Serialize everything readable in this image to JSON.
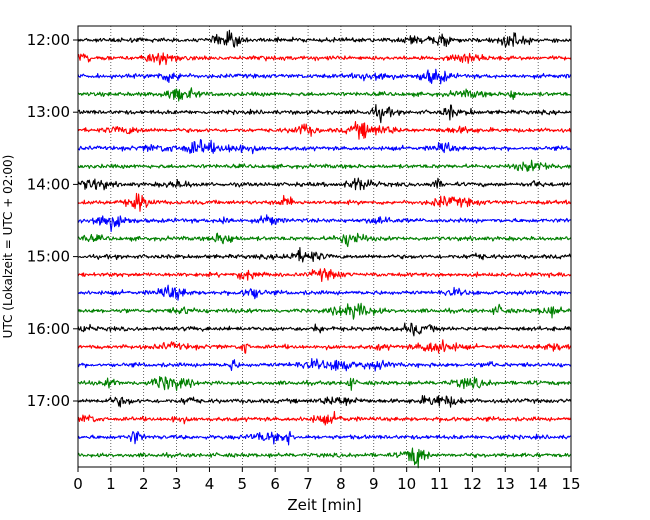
{
  "chart_data": {
    "type": "line",
    "title": "",
    "xlabel": "Zeit  [min]",
    "ylabel": "UTC (Lokalzeit = UTC + 02:00)",
    "xlim": [
      0,
      15
    ],
    "x_ticks": [
      0,
      1,
      2,
      3,
      4,
      5,
      6,
      7,
      8,
      9,
      10,
      11,
      12,
      13,
      14,
      15
    ],
    "y_tick_labels": [
      "12:00",
      "13:00",
      "14:00",
      "15:00",
      "16:00",
      "17:00"
    ],
    "trace_interval_minutes": 15,
    "grid": "vertical dotted at each minute",
    "color_cycle": [
      "#000000",
      "#ff0000",
      "#0000ff",
      "#008000"
    ],
    "traces": [
      {
        "start": "12:00",
        "color": "#000000"
      },
      {
        "start": "12:15",
        "color": "#ff0000"
      },
      {
        "start": "12:30",
        "color": "#0000ff"
      },
      {
        "start": "12:45",
        "color": "#008000"
      },
      {
        "start": "13:00",
        "color": "#000000"
      },
      {
        "start": "13:15",
        "color": "#ff0000"
      },
      {
        "start": "13:30",
        "color": "#0000ff"
      },
      {
        "start": "13:45",
        "color": "#008000"
      },
      {
        "start": "14:00",
        "color": "#000000"
      },
      {
        "start": "14:15",
        "color": "#ff0000"
      },
      {
        "start": "14:30",
        "color": "#0000ff"
      },
      {
        "start": "14:45",
        "color": "#008000"
      },
      {
        "start": "15:00",
        "color": "#000000"
      },
      {
        "start": "15:15",
        "color": "#ff0000"
      },
      {
        "start": "15:30",
        "color": "#0000ff"
      },
      {
        "start": "15:45",
        "color": "#008000"
      },
      {
        "start": "16:00",
        "color": "#000000"
      },
      {
        "start": "16:15",
        "color": "#ff0000"
      },
      {
        "start": "16:30",
        "color": "#0000ff"
      },
      {
        "start": "16:45",
        "color": "#008000"
      },
      {
        "start": "17:00",
        "color": "#000000"
      },
      {
        "start": "17:15",
        "color": "#ff0000"
      },
      {
        "start": "17:30",
        "color": "#0000ff"
      },
      {
        "start": "17:45",
        "color": "#008000"
      }
    ]
  }
}
